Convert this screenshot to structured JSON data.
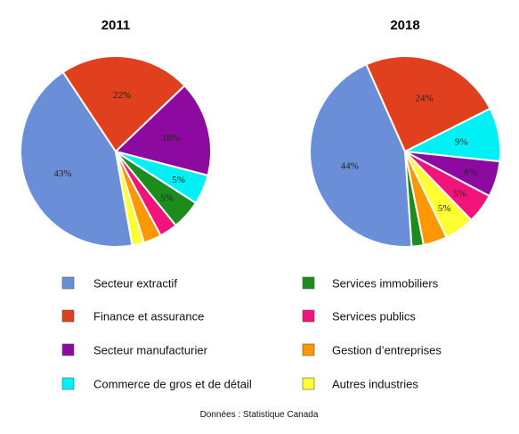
{
  "chart_data": [
    {
      "type": "pie",
      "title": "2011",
      "categories": [
        "Secteur extractif",
        "Finance et assurance",
        "Secteur manufacturier",
        "Commerce de gros et de détail",
        "Services immobiliers",
        "Services publics",
        "Gestion d’entreprises",
        "Autres industries"
      ],
      "values": [
        43,
        22,
        16,
        5,
        5,
        3,
        3,
        2
      ],
      "labels": [
        "43%",
        "22%",
        "16%",
        "5%",
        "5%",
        "",
        "",
        ""
      ]
    },
    {
      "type": "pie",
      "title": "2018",
      "categories": [
        "Secteur extractif",
        "Finance et assurance",
        "Commerce de gros et de détail",
        "Secteur manufacturier",
        "Services publics",
        "Autres industries",
        "Gestion d’entreprises",
        "Services immobiliers"
      ],
      "values": [
        44,
        24,
        9,
        6,
        5,
        5,
        4,
        2
      ],
      "labels": [
        "44%",
        "24%",
        "9%",
        "6%",
        "5%",
        "5%",
        "",
        ""
      ]
    }
  ],
  "colors": {
    "Secteur extractif": "#6a8fd8",
    "Finance et assurance": "#e0401e",
    "Secteur manufacturier": "#8c0aa0",
    "Commerce de gros et de détail": "#00f0f5",
    "Services immobiliers": "#1c8c1c",
    "Services publics": "#f2147a",
    "Gestion d’entreprises": "#ff9800",
    "Autres industries": "#ffff33"
  },
  "legend": {
    "left": [
      "Secteur extractif",
      "Finance et assurance",
      "Secteur manufacturier",
      "Commerce de gros et de détail"
    ],
    "right": [
      "Services immobiliers",
      "Services publics",
      "Gestion d’entreprises",
      "Autres industries"
    ]
  },
  "source": "Données : Statistique Canada"
}
